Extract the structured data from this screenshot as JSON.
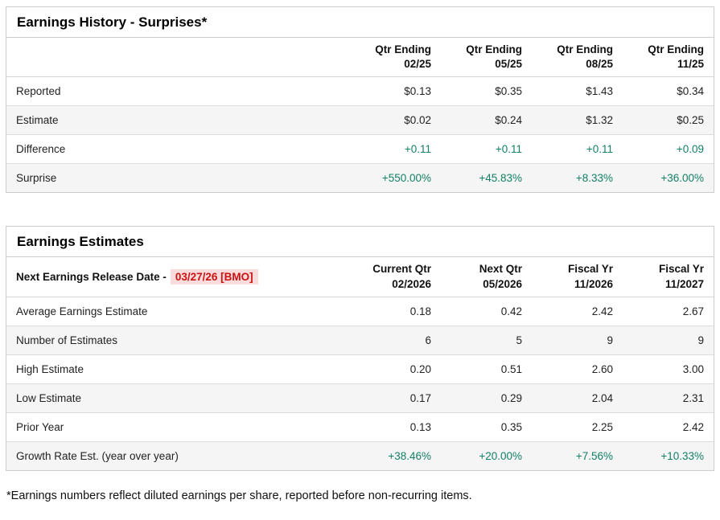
{
  "history": {
    "title": "Earnings History - Surprises*",
    "columns": [
      {
        "line1": "Qtr Ending",
        "line2": "02/25"
      },
      {
        "line1": "Qtr Ending",
        "line2": "05/25"
      },
      {
        "line1": "Qtr Ending",
        "line2": "08/25"
      },
      {
        "line1": "Qtr Ending",
        "line2": "11/25"
      }
    ],
    "rows": [
      {
        "label": "Reported",
        "values": [
          "$0.13",
          "$0.35",
          "$1.43",
          "$0.34"
        ]
      },
      {
        "label": "Estimate",
        "values": [
          "$0.02",
          "$0.24",
          "$1.32",
          "$0.25"
        ]
      },
      {
        "label": "Difference",
        "values": [
          "+0.11",
          "+0.11",
          "+0.11",
          "+0.09"
        ]
      },
      {
        "label": "Surprise",
        "values": [
          "+550.00%",
          "+45.83%",
          "+8.33%",
          "+36.00%"
        ]
      }
    ]
  },
  "estimates": {
    "title": "Earnings Estimates",
    "release_label": "Next Earnings Release Date -",
    "release_date": "03/27/26 [BMO]",
    "columns": [
      {
        "line1": "Current Qtr",
        "line2": "02/2026"
      },
      {
        "line1": "Next Qtr",
        "line2": "05/2026"
      },
      {
        "line1": "Fiscal Yr",
        "line2": "11/2026"
      },
      {
        "line1": "Fiscal Yr",
        "line2": "11/2027"
      }
    ],
    "rows": [
      {
        "label": "Average Earnings Estimate",
        "values": [
          "0.18",
          "0.42",
          "2.42",
          "2.67"
        ]
      },
      {
        "label": "Number of Estimates",
        "values": [
          "6",
          "5",
          "9",
          "9"
        ]
      },
      {
        "label": "High Estimate",
        "values": [
          "0.20",
          "0.51",
          "2.60",
          "3.00"
        ]
      },
      {
        "label": "Low Estimate",
        "values": [
          "0.17",
          "0.29",
          "2.04",
          "2.31"
        ]
      },
      {
        "label": "Prior Year",
        "values": [
          "0.13",
          "0.35",
          "2.25",
          "2.42"
        ]
      },
      {
        "label": "Growth Rate Est. (year over year)",
        "values": [
          "+38.46%",
          "+20.00%",
          "+7.56%",
          "+10.33%"
        ]
      }
    ]
  },
  "footnote": "*Earnings numbers reflect diluted earnings per share, reported before non-recurring items.",
  "colors": {
    "positive_green": "#128066",
    "alert_red_text": "#cc1111",
    "alert_red_bg": "#fbdcdc",
    "stripe_gray": "#f5f5f5"
  }
}
